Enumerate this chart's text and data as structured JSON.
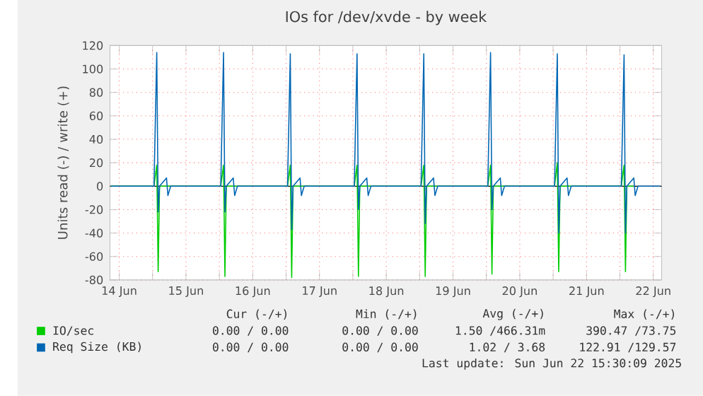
{
  "chart_data": {
    "type": "line",
    "title": "IOs for /dev/xvde - by week",
    "ylabel": "Units read (-) / write (+)",
    "x": [
      "2025-06-14T09:00",
      "2025-06-15T00:30",
      "2025-06-15T01:30",
      "2025-06-15T02:00",
      "2025-06-15T02:30",
      "2025-06-15T05:00",
      "2025-06-15T05:30",
      "2025-06-15T06:30",
      "2025-06-16T00:30",
      "2025-06-16T01:30",
      "2025-06-16T02:00",
      "2025-06-16T02:30",
      "2025-06-16T05:00",
      "2025-06-16T05:30",
      "2025-06-16T06:30",
      "2025-06-17T00:30",
      "2025-06-17T01:30",
      "2025-06-17T02:00",
      "2025-06-17T02:30",
      "2025-06-17T05:00",
      "2025-06-17T05:30",
      "2025-06-17T06:30",
      "2025-06-18T00:30",
      "2025-06-18T01:30",
      "2025-06-18T02:00",
      "2025-06-18T02:30",
      "2025-06-18T05:00",
      "2025-06-18T05:30",
      "2025-06-18T06:30",
      "2025-06-19T00:30",
      "2025-06-19T01:30",
      "2025-06-19T02:00",
      "2025-06-19T02:30",
      "2025-06-19T05:00",
      "2025-06-19T05:30",
      "2025-06-19T06:30",
      "2025-06-20T00:30",
      "2025-06-20T01:30",
      "2025-06-20T02:00",
      "2025-06-20T02:30",
      "2025-06-20T05:00",
      "2025-06-20T05:30",
      "2025-06-20T06:30",
      "2025-06-21T00:30",
      "2025-06-21T01:30",
      "2025-06-21T02:00",
      "2025-06-21T02:30",
      "2025-06-21T05:00",
      "2025-06-21T05:30",
      "2025-06-21T06:30",
      "2025-06-22T00:30",
      "2025-06-22T01:30",
      "2025-06-22T02:00",
      "2025-06-22T02:30",
      "2025-06-22T05:00",
      "2025-06-22T05:30",
      "2025-06-22T06:30",
      "2025-06-22T14:30"
    ],
    "series": [
      {
        "name": "IO/sec",
        "color": "#00cc00",
        "values": [
          0,
          0,
          18,
          -73,
          0,
          0,
          0,
          0,
          0,
          18,
          -77,
          0,
          0,
          0,
          0,
          0,
          18,
          -78,
          0,
          0,
          0,
          0,
          0,
          18,
          -77,
          0,
          0,
          0,
          0,
          0,
          18,
          -77,
          0,
          0,
          0,
          0,
          0,
          18,
          -75,
          0,
          0,
          0,
          0,
          0,
          20,
          -73,
          0,
          0,
          0,
          0,
          0,
          18,
          -73,
          0,
          0,
          null,
          null,
          null
        ]
      },
      {
        "name": "Req Size (KB)",
        "color": "#0066b3",
        "values": [
          0,
          0,
          114,
          -22,
          0,
          7,
          -8,
          0,
          0,
          114,
          -22,
          0,
          7,
          -8,
          0,
          0,
          113,
          -37,
          0,
          7,
          -8,
          0,
          0,
          113,
          -20,
          0,
          7,
          -8,
          0,
          0,
          113,
          -32,
          0,
          7,
          -8,
          0,
          0,
          114,
          -20,
          0,
          7,
          -8,
          0,
          0,
          113,
          -40,
          0,
          7,
          -8,
          0,
          0,
          112,
          -40,
          0,
          7,
          -8,
          0,
          0
        ]
      }
    ],
    "xlim": [
      "2025-06-14T08:40",
      "2025-06-22T15:00"
    ],
    "xticks": [
      {
        "value": "2025-06-14T12:00",
        "label": "14 Jun"
      },
      {
        "value": "2025-06-15T00:00",
        "label": null
      },
      {
        "value": "2025-06-15T12:00",
        "label": "15 Jun"
      },
      {
        "value": "2025-06-16T00:00",
        "label": null
      },
      {
        "value": "2025-06-16T12:00",
        "label": "16 Jun"
      },
      {
        "value": "2025-06-17T00:00",
        "label": null
      },
      {
        "value": "2025-06-17T12:00",
        "label": "17 Jun"
      },
      {
        "value": "2025-06-18T00:00",
        "label": null
      },
      {
        "value": "2025-06-18T12:00",
        "label": "18 Jun"
      },
      {
        "value": "2025-06-19T00:00",
        "label": null
      },
      {
        "value": "2025-06-19T12:00",
        "label": "19 Jun"
      },
      {
        "value": "2025-06-20T00:00",
        "label": null
      },
      {
        "value": "2025-06-20T12:00",
        "label": "20 Jun"
      },
      {
        "value": "2025-06-21T00:00",
        "label": null
      },
      {
        "value": "2025-06-21T12:00",
        "label": "21 Jun"
      },
      {
        "value": "2025-06-22T00:00",
        "label": null
      },
      {
        "value": "2025-06-22T12:00",
        "label": "22 Jun"
      }
    ],
    "ylim": [
      -80,
      120
    ],
    "yticks": [
      -80,
      -60,
      -40,
      -20,
      0,
      20,
      40,
      60,
      80,
      100,
      120
    ],
    "ref_lines": [
      {
        "axis": "y",
        "value": 0,
        "color": "#000000"
      }
    ],
    "grid": true,
    "legend": "bottom",
    "marker": "none",
    "line_style": "solid",
    "annotations": [
      "Cur (-/+)",
      "Min (-/+)",
      "Avg (-/+)",
      "Max (-/+)",
      "0.00 / 0.00",
      "0.00 / 0.00",
      "1.50 /466.31m",
      "390.47 /73.75",
      "0.00 / 0.00",
      "0.00 / 0.00",
      "1.02 / 3.68",
      "122.91 /129.57",
      "Last update: Sun Jun 22 15:30:09 2025"
    ]
  }
}
